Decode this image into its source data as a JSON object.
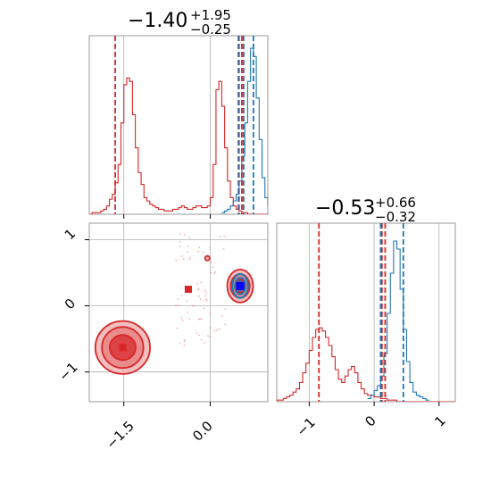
{
  "chart_data": {
    "type": "corner",
    "grid": true,
    "colors": {
      "series_a": "#1f77b4",
      "series_b": "#d62728",
      "grid": "#b0b0b0"
    },
    "panels": [
      {
        "id": "marginal-param-1",
        "title": {
          "main": "−1.40",
          "sup": "+1.95",
          "sub": "−0.25"
        },
        "xlim": [
          -2.1,
          1.0
        ],
        "x_ticks": [
          -1.5,
          0.0
        ],
        "hist_red": {
          "bin_edges_start": -2.1,
          "bin_width": 0.05,
          "counts": [
            0,
            1,
            1,
            1,
            2,
            3,
            5,
            9,
            12,
            19,
            30,
            55,
            78,
            82,
            80,
            60,
            40,
            25,
            18,
            10,
            8,
            6,
            5,
            4,
            3,
            3,
            2,
            2,
            2,
            3,
            3,
            4,
            5,
            4,
            3,
            3,
            4,
            5,
            5,
            4,
            4,
            5,
            10,
            30,
            75,
            80,
            65,
            40,
            20,
            10,
            5,
            3,
            2,
            1,
            1,
            0,
            0,
            0,
            0,
            0,
            0,
            0
          ]
        },
        "hist_blue": {
          "bin_edges_start": 0.2,
          "bin_width": 0.05,
          "counts": [
            1,
            2,
            3,
            5,
            8,
            12,
            20,
            35,
            55,
            80,
            100,
            95,
            70,
            45,
            22,
            10,
            5,
            2
          ]
        },
        "lines_red": [
          -1.65,
          0.49,
          0.55
        ],
        "lines_blue": [
          0.5,
          0.58,
          0.75
        ]
      },
      {
        "id": "marginal-param-2",
        "title": {
          "main": "−0.53",
          "sup": "+0.66",
          "sub": "−0.32"
        },
        "xlim": [
          -1.5,
          1.25
        ],
        "x_ticks": [
          -1,
          0,
          1
        ],
        "hist_red": {
          "bin_edges_start": -1.5,
          "bin_width": 0.05,
          "counts": [
            1,
            1,
            2,
            3,
            4,
            6,
            8,
            12,
            18,
            24,
            32,
            40,
            45,
            46,
            44,
            40,
            35,
            28,
            20,
            14,
            12,
            16,
            20,
            22,
            18,
            12,
            8,
            5,
            4,
            4,
            3,
            3,
            2,
            2,
            1,
            1,
            1,
            0,
            0,
            0,
            0,
            0,
            0,
            0,
            0,
            0,
            0,
            0,
            0,
            0,
            0,
            0,
            0,
            0,
            0
          ]
        },
        "hist_blue": {
          "bin_edges_start": -0.1,
          "bin_width": 0.05,
          "counts": [
            2,
            4,
            7,
            10,
            16,
            30,
            55,
            80,
            100,
            95,
            70,
            45,
            25,
            12,
            6,
            4,
            3,
            2,
            1
          ]
        },
        "lines_red": [
          -0.85,
          0.12,
          0.17
        ],
        "lines_blue": [
          0.1,
          0.45
        ]
      },
      {
        "id": "joint-param-1-param-2",
        "xlim": [
          -2.1,
          1.0
        ],
        "ylim": [
          -1.45,
          1.25
        ],
        "x_ticks": [
          -1.5,
          0.0
        ],
        "y_ticks": [
          -1,
          0,
          1
        ],
        "markers": [
          {
            "name": "mode-a",
            "x": -1.52,
            "y": -0.63,
            "color": "#d62728"
          },
          {
            "name": "mode-b",
            "x": -0.38,
            "y": 0.25,
            "color": "#d62728"
          },
          {
            "name": "mode-c",
            "x": 0.52,
            "y": 0.3,
            "color": "#d62728"
          },
          {
            "name": "truth",
            "x": 0.52,
            "y": 0.3,
            "color": "#0000ff"
          }
        ],
        "contours_red": [
          {
            "cx": -1.52,
            "cy": -0.63,
            "rx": [
              0.95,
              0.72,
              0.45
            ],
            "ry": [
              0.8,
              0.62,
              0.38
            ]
          },
          {
            "cx": 0.52,
            "cy": 0.3,
            "rx": [
              0.45,
              0.33,
              0.18
            ],
            "ry": [
              0.5,
              0.36,
              0.2
            ]
          },
          {
            "cx": -0.05,
            "cy": 0.72,
            "rx": [
              0.08
            ],
            "ry": [
              0.07
            ]
          }
        ],
        "contours_blue": [
          {
            "cx": 0.52,
            "cy": 0.3,
            "rx": [
              0.27,
              0.18,
              0.1
            ],
            "ry": [
              0.36,
              0.25,
              0.14
            ]
          }
        ]
      }
    ]
  },
  "labels": {
    "p1_ticks": [
      "−1.5",
      "0.0"
    ],
    "p2_ticks": [
      "−1",
      "0",
      "1"
    ],
    "joint_y_ticks": [
      "−1",
      "0",
      "1"
    ]
  }
}
